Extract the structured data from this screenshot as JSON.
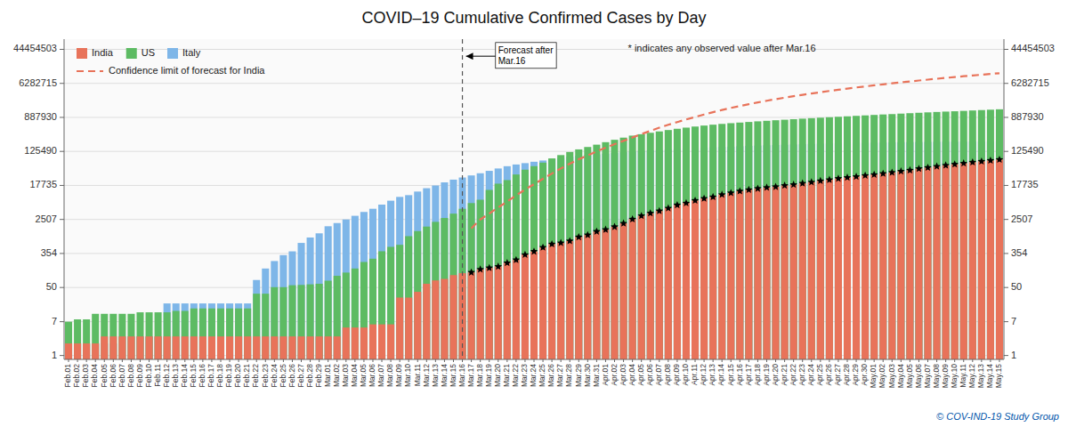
{
  "chart_data": {
    "type": "bar",
    "title": "COVID–19 Cumulative Confirmed Cases by Day",
    "categories": [
      "Feb.01",
      "Feb.02",
      "Feb.03",
      "Feb.04",
      "Feb.05",
      "Feb.06",
      "Feb.07",
      "Feb.08",
      "Feb.09",
      "Feb.10",
      "Feb.11",
      "Feb.12",
      "Feb.13",
      "Feb.14",
      "Feb.15",
      "Feb.16",
      "Feb.17",
      "Feb.18",
      "Feb.19",
      "Feb.20",
      "Feb.21",
      "Feb.22",
      "Feb.23",
      "Feb.24",
      "Feb.25",
      "Feb.26",
      "Feb.27",
      "Feb.28",
      "Feb.29",
      "Mar.01",
      "Mar.02",
      "Mar.03",
      "Mar.04",
      "Mar.05",
      "Mar.06",
      "Mar.07",
      "Mar.08",
      "Mar.09",
      "Mar.10",
      "Mar.11",
      "Mar.12",
      "Mar.13",
      "Mar.14",
      "Mar.15",
      "Mar.16",
      "Mar.17",
      "Mar.18",
      "Mar.19",
      "Mar.20",
      "Mar.21",
      "Mar.22",
      "Mar.23",
      "Mar.24",
      "Mar.25",
      "Mar.26",
      "Mar.27",
      "Mar.28",
      "Mar.29",
      "Mar.30",
      "Mar.31",
      "Apr.01",
      "Apr.02",
      "Apr.03",
      "Apr.04",
      "Apr.05",
      "Apr.06",
      "Apr.07",
      "Apr.08",
      "Apr.09",
      "Apr.10",
      "Apr.11",
      "Apr.12",
      "Apr.13",
      "Apr.14",
      "Apr.15",
      "Apr.16",
      "Apr.17",
      "Apr.18",
      "Apr.19",
      "Apr.20",
      "Apr.21",
      "Apr.22",
      "Apr.23",
      "Apr.24",
      "Apr.25",
      "Apr.26",
      "Apr.27",
      "Apr.28",
      "Apr.29",
      "Apr.30",
      "May.01",
      "May.02",
      "May.03",
      "May.04",
      "May.05",
      "May.06",
      "May.07",
      "May.08",
      "May.09",
      "May.10",
      "May.11",
      "May.12",
      "May.13",
      "May.14",
      "May.15"
    ],
    "series": [
      {
        "name": "India",
        "color": "#E8735A",
        "values": [
          2,
          2,
          2,
          2,
          3,
          3,
          3,
          3,
          3,
          3,
          3,
          3,
          3,
          3,
          3,
          3,
          3,
          3,
          3,
          3,
          3,
          3,
          3,
          3,
          3,
          3,
          3,
          3,
          3,
          3,
          3,
          5,
          5,
          5,
          6,
          6,
          6,
          28,
          28,
          39,
          62,
          75,
          82,
          102,
          114,
          119,
          142,
          154,
          167,
          206,
          244,
          330,
          396,
          499,
          606,
          649,
          724,
          909,
          1024,
          1251,
          1397,
          1637,
          1998,
          2543,
          3072,
          3577,
          4067,
          4789,
          5734,
          6412,
          7447,
          8356,
          9152,
          10453,
          11487,
          12759,
          13835,
          14792,
          15712,
          16365,
          17615,
          18539,
          19984,
          21393,
          23077,
          24530,
          26283,
          27890,
          29451,
          31332,
          33050,
          35043,
          37257,
          39980,
          42505,
          46437,
          49391,
          52987,
          56342,
          59695,
          63489,
          67152,
          70768,
          74292,
          78055
        ]
      },
      {
        "name": "US",
        "color": "#5DBB63",
        "values": [
          7,
          8,
          8,
          11,
          11,
          11,
          11,
          11,
          12,
          12,
          12,
          12,
          13,
          13,
          15,
          15,
          15,
          15,
          15,
          15,
          15,
          35,
          35,
          51,
          51,
          57,
          58,
          60,
          62,
          74,
          98,
          118,
          149,
          217,
          262,
          402,
          518,
          583,
          959,
          1281,
          1663,
          2179,
          2727,
          3499,
          4632,
          6421,
          7783,
          13677,
          19624,
          24087,
          33276,
          43847,
          53740,
          65778,
          83836,
          101657,
          121478,
          140886,
          161831,
          184943,
          213372,
          244877,
          277161,
          311357,
          337072,
          366614,
          396223,
          429052,
          461437,
          492881,
          524514,
          555313,
          584083,
          610678,
          637008,
          659399,
          682619,
          707263,
          729650,
          753766,
          776093,
          800926,
          825306,
          848994,
          872585,
          895766,
          918959,
          944245,
          970087,
          995532,
          1023073,
          1050828,
          1073849,
          1103461,
          1131028,
          1158040,
          1186036,
          1212835,
          1240127,
          1263034,
          1290722,
          1321785,
          1352099,
          1383499,
          1415154
        ]
      },
      {
        "name": "Italy",
        "color": "#7EB6E8",
        "values": [
          2,
          2,
          2,
          2,
          2,
          2,
          3,
          3,
          3,
          3,
          3,
          20,
          20,
          20,
          20,
          20,
          20,
          20,
          20,
          20,
          20,
          77,
          149,
          229,
          322,
          400,
          650,
          888,
          1128,
          1694,
          2036,
          2502,
          3089,
          3858,
          4636,
          5883,
          7375,
          9172,
          10149,
          12462,
          15113,
          17660,
          21157,
          24747,
          27980,
          31506,
          35713,
          41035,
          47021,
          53578,
          59138,
          63927,
          69176,
          74386,
          80539,
          86498,
          92472,
          97689,
          101739,
          105792,
          110574,
          115242,
          119827,
          124632,
          128948,
          132547,
          135586,
          139422,
          143626,
          147577,
          152271,
          156363,
          159516,
          162488,
          165155,
          168941,
          172434,
          175925,
          178972,
          181228,
          183957,
          187327,
          189973,
          192994,
          195351,
          197675,
          199414,
          201505,
          203591,
          205463,
          207428,
          209328,
          211938,
          213013,
          214457,
          215858,
          217185,
          218268,
          219070,
          219814,
          220374,
          221216,
          222104,
          223096,
          223885
        ]
      },
      {
        "name": "Confidence limit of forecast for India",
        "type": "line",
        "line_style": "dashed",
        "color": "#E8735A",
        "values": [
          null,
          null,
          null,
          null,
          null,
          null,
          null,
          null,
          null,
          null,
          null,
          null,
          null,
          null,
          null,
          null,
          null,
          null,
          null,
          null,
          null,
          null,
          null,
          null,
          null,
          null,
          null,
          null,
          null,
          null,
          null,
          null,
          null,
          null,
          null,
          null,
          null,
          null,
          null,
          null,
          null,
          null,
          null,
          null,
          null,
          1500,
          2500,
          3500,
          5000,
          7000,
          10000,
          14000,
          19000,
          26000,
          35000,
          47000,
          62000,
          80000,
          100000,
          125000,
          155000,
          190000,
          230000,
          280000,
          340000,
          410000,
          490000,
          580000,
          680000,
          790000,
          910000,
          1050000,
          1200000,
          1360000,
          1530000,
          1710000,
          1900000,
          2100000,
          2310000,
          2530000,
          2760000,
          3000000,
          3250000,
          3510000,
          3780000,
          4060000,
          4350000,
          4650000,
          4960000,
          5280000,
          5610000,
          5950000,
          6300000,
          6660000,
          7030000,
          7410000,
          7800000,
          8200000,
          8610000,
          9030000,
          9460000,
          9900000,
          10350000,
          10810000,
          11280000
        ]
      },
      {
        "type": "scatter",
        "marker": "star",
        "color": "#000000",
        "values": [
          null,
          null,
          null,
          null,
          null,
          null,
          null,
          null,
          null,
          null,
          null,
          null,
          null,
          null,
          null,
          null,
          null,
          null,
          null,
          null,
          null,
          null,
          null,
          null,
          null,
          null,
          null,
          null,
          null,
          null,
          null,
          null,
          null,
          null,
          null,
          null,
          null,
          null,
          null,
          null,
          null,
          null,
          null,
          null,
          null,
          119,
          142,
          154,
          167,
          206,
          244,
          330,
          396,
          499,
          606,
          649,
          724,
          909,
          1024,
          1251,
          1397,
          1637,
          1998,
          2543,
          3072,
          3577,
          4067,
          4789,
          5734,
          6412,
          7447,
          8356,
          9152,
          10453,
          11487,
          12759,
          13835,
          14792,
          15712,
          16365,
          17615,
          18539,
          19984,
          21393,
          23077,
          24530,
          26283,
          27890,
          29451,
          31332,
          33050,
          35043,
          37257,
          39980,
          42505,
          46437,
          49391,
          52987,
          56342,
          59695,
          63489,
          67152,
          70768,
          74292,
          78055
        ]
      }
    ],
    "log": "y",
    "ylim": [
      0.8,
      80000000
    ],
    "yticks": [
      1,
      7,
      50,
      354,
      2507,
      17735,
      125490,
      887930,
      6282715,
      44454503
    ],
    "y2lim": [
      0.8,
      80000000
    ],
    "y2ticks": [
      1,
      7,
      50,
      354,
      2507,
      17735,
      125490,
      887930,
      6282715,
      44454503
    ],
    "grid": true,
    "legend": "upper left",
    "annotations": [
      {
        "text": "Forecast after\nMar.16",
        "x": "Mar.16",
        "y": 30000000
      }
    ],
    "note": "* indicates any observed value after Mar.16",
    "credit": "© COV-IND-19 Study Group"
  }
}
